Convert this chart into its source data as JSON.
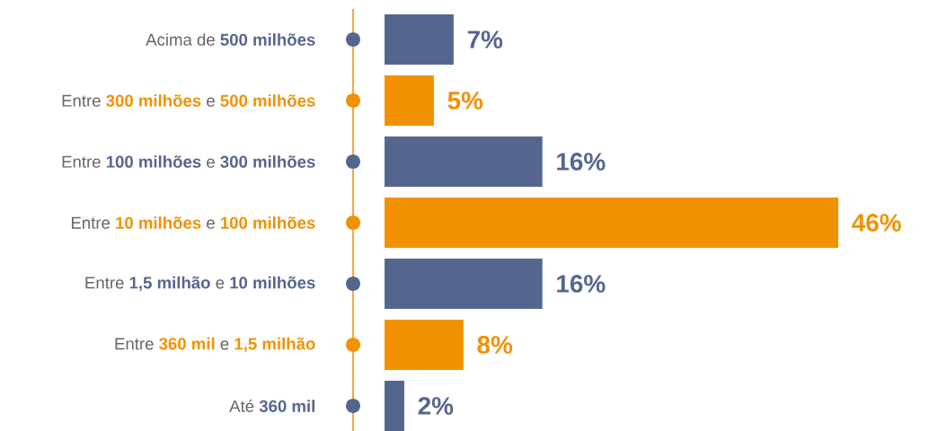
{
  "chart_data": {
    "type": "bar",
    "orientation": "horizontal",
    "categories": [
      "Acima de **500 milhões**",
      "Entre **300 milhões** e **500 milhões**",
      "Entre **100 milhões** e **300 milhões**",
      "Entre **10 milhões** e **100 milhões**",
      "Entre **1,5 milhão** e **10 milhões**",
      "Entre **360 mil** e **1,5 milhão**",
      "Até **360 mil**"
    ],
    "values": [
      7,
      5,
      16,
      46,
      16,
      8,
      2
    ],
    "colors": [
      "#55668e",
      "#f29100",
      "#55668e",
      "#f29100",
      "#55668e",
      "#f29100",
      "#55668e"
    ],
    "value_labels": [
      "7%",
      "5%",
      "16%",
      "46%",
      "16%",
      "8%",
      "2%"
    ]
  }
}
